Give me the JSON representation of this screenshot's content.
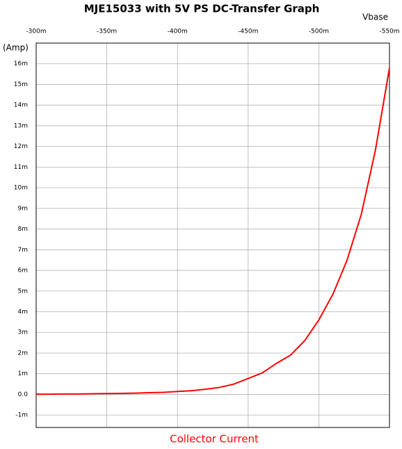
{
  "chart_data": {
    "type": "line",
    "title": "MJE15033 with 5V PS DC-Transfer Graph",
    "x_label": "Vbase",
    "y_label": "(Amp)",
    "x": [
      -300,
      -310,
      -320,
      -330,
      -340,
      -350,
      -360,
      -370,
      -380,
      -390,
      -400,
      -410,
      -420,
      -430,
      -440,
      -450,
      -460,
      -470,
      -480,
      -490,
      -500,
      -510,
      -520,
      -530,
      -540,
      -550
    ],
    "series": [
      {
        "name": "Collector Current",
        "color": "#ff0000",
        "values": [
          0.01,
          0.01,
          0.02,
          0.02,
          0.03,
          0.04,
          0.05,
          0.06,
          0.08,
          0.1,
          0.14,
          0.18,
          0.25,
          0.34,
          0.5,
          0.77,
          1.04,
          1.5,
          1.9,
          2.6,
          3.6,
          4.85,
          6.5,
          8.7,
          11.8,
          15.8
        ]
      }
    ],
    "xlim": [
      -300,
      -550
    ],
    "xticks": [
      {
        "value": -300,
        "label": "-300m"
      },
      {
        "value": -350,
        "label": "-350m"
      },
      {
        "value": -400,
        "label": "-400m"
      },
      {
        "value": -450,
        "label": "-450m"
      },
      {
        "value": -500,
        "label": "-500m"
      },
      {
        "value": -550,
        "label": "-550m"
      }
    ],
    "ylim": [
      -1.6,
      17
    ],
    "yticks": [
      {
        "value": -1,
        "label": "-1m"
      },
      {
        "value": 0,
        "label": "0.0"
      },
      {
        "value": 1,
        "label": "1m"
      },
      {
        "value": 2,
        "label": "2m"
      },
      {
        "value": 3,
        "label": "3m"
      },
      {
        "value": 4,
        "label": "4m"
      },
      {
        "value": 5,
        "label": "5m"
      },
      {
        "value": 6,
        "label": "6m"
      },
      {
        "value": 7,
        "label": "7m"
      },
      {
        "value": 8,
        "label": "8m"
      },
      {
        "value": 9,
        "label": "9m"
      },
      {
        "value": 10,
        "label": "10m"
      },
      {
        "value": 11,
        "label": "11m"
      },
      {
        "value": 12,
        "label": "12m"
      },
      {
        "value": 13,
        "label": "13m"
      },
      {
        "value": 14,
        "label": "14m"
      },
      {
        "value": 15,
        "label": "15m"
      },
      {
        "value": 16,
        "label": "16m"
      }
    ],
    "grid": true
  }
}
